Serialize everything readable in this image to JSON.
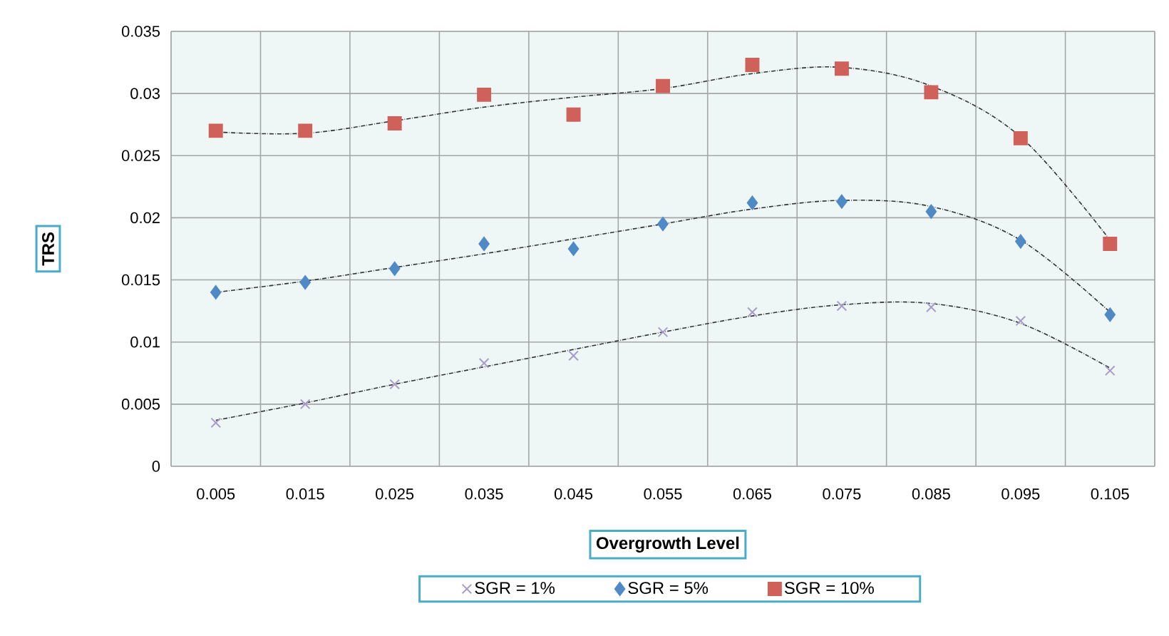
{
  "chart_data": {
    "type": "scatter",
    "xlabel": "Overgrowth Level",
    "ylabel": "TRS",
    "categories": [
      "0.005",
      "0.015",
      "0.025",
      "0.035",
      "0.045",
      "0.055",
      "0.065",
      "0.075",
      "0.085",
      "0.095",
      "0.105"
    ],
    "ylim": [
      0,
      0.035
    ],
    "yticks": [
      0,
      0.005,
      0.01,
      0.015,
      0.02,
      0.025,
      0.03,
      0.035
    ],
    "grid": true,
    "legend": "bottom",
    "series": [
      {
        "name": "SGR = 1%",
        "marker": "cross",
        "color": "#a99bc8",
        "values": [
          0.0035,
          0.005,
          0.0066,
          0.0083,
          0.0089,
          0.0108,
          0.0124,
          0.0129,
          0.0128,
          0.0117,
          0.0077
        ]
      },
      {
        "name": "SGR = 5%",
        "marker": "diamond",
        "color": "#4f8ac6",
        "values": [
          0.014,
          0.0148,
          0.0159,
          0.0179,
          0.0175,
          0.0195,
          0.0212,
          0.0213,
          0.0205,
          0.0181,
          0.0122
        ]
      },
      {
        "name": "SGR = 10%",
        "marker": "square",
        "color": "#d0605a",
        "values": [
          0.027,
          0.027,
          0.0276,
          0.0299,
          0.0283,
          0.0306,
          0.0323,
          0.032,
          0.0301,
          0.0264,
          0.0179
        ]
      },
      {
        "type": "line",
        "line_style": "dotted",
        "color": "#333333",
        "values": [
          0.0037,
          0.0051,
          0.0066,
          0.008,
          0.0094,
          0.0108,
          0.0121,
          0.013,
          0.0131,
          0.0115,
          0.0079
        ]
      },
      {
        "type": "line",
        "line_style": "dotted",
        "color": "#333333",
        "values": [
          0.014,
          0.0149,
          0.016,
          0.0171,
          0.0183,
          0.0195,
          0.0207,
          0.0214,
          0.0209,
          0.0182,
          0.0124
        ]
      },
      {
        "type": "line",
        "line_style": "dotted",
        "color": "#333333",
        "values": [
          0.0269,
          0.0268,
          0.0278,
          0.0289,
          0.0297,
          0.0304,
          0.0316,
          0.0321,
          0.0306,
          0.0265,
          0.0182
        ]
      }
    ]
  }
}
